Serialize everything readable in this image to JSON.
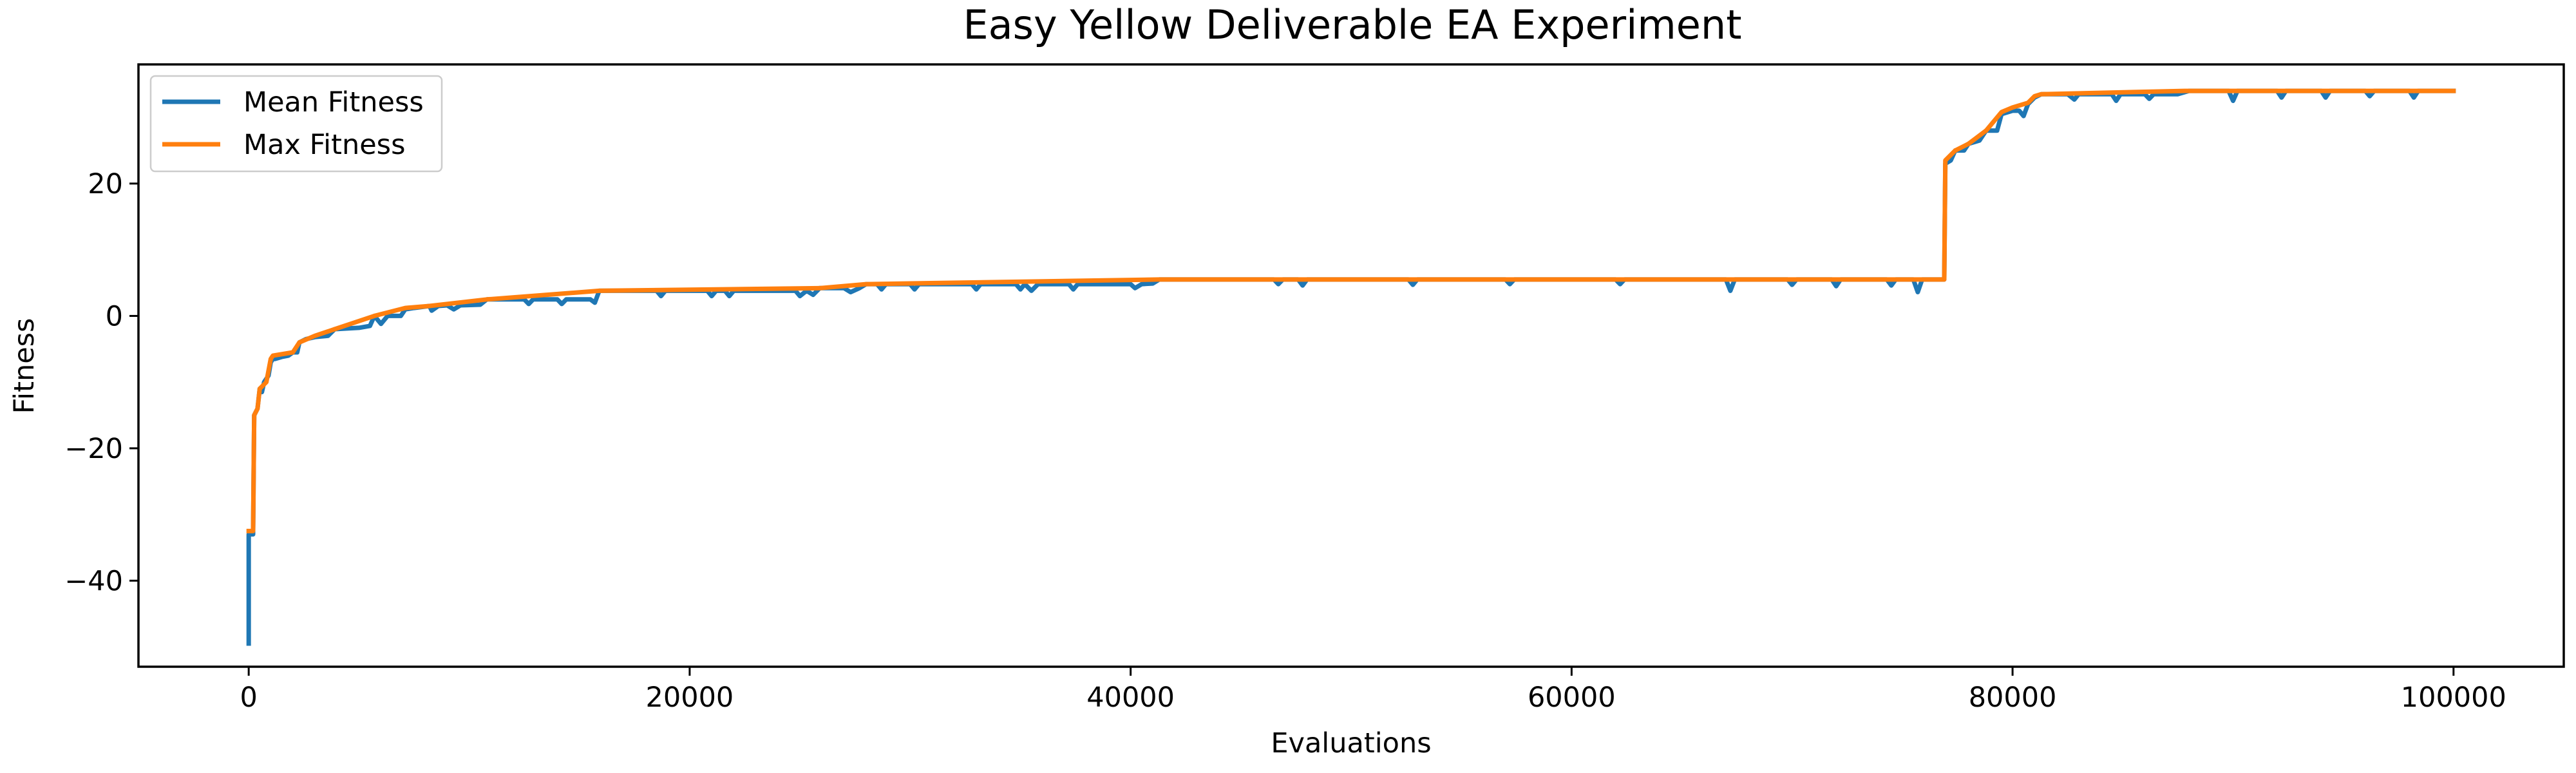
{
  "chart_data": {
    "type": "line",
    "title": "Easy Yellow Deliverable EA Experiment",
    "xlabel": "Evaluations",
    "ylabel": "Fitness",
    "xlim": [
      -5000,
      105000
    ],
    "ylim": [
      -53,
      38
    ],
    "xticks": [
      0,
      20000,
      40000,
      60000,
      80000,
      100000
    ],
    "xtick_labels": [
      "0",
      "20000",
      "40000",
      "60000",
      "80000",
      "100000"
    ],
    "yticks": [
      -40,
      -20,
      0,
      20
    ],
    "ytick_labels": [
      "−40",
      "−20",
      "0",
      "20"
    ],
    "grid": false,
    "legend_position": "top-left",
    "series": [
      {
        "name": "Mean Fitness",
        "color": "#1f77b4",
        "points": [
          [
            0,
            -49.5
          ],
          [
            0,
            -33
          ],
          [
            200,
            -33
          ],
          [
            250,
            -15
          ],
          [
            400,
            -14
          ],
          [
            500,
            -11
          ],
          [
            600,
            -11.5
          ],
          [
            700,
            -10
          ],
          [
            900,
            -9
          ],
          [
            1000,
            -7
          ],
          [
            1100,
            -6.5
          ],
          [
            1200,
            -6.5
          ],
          [
            1500,
            -6.2
          ],
          [
            1800,
            -6
          ],
          [
            2000,
            -5.5
          ],
          [
            2200,
            -5.5
          ],
          [
            2300,
            -4
          ],
          [
            2600,
            -3.5
          ],
          [
            3000,
            -3.2
          ],
          [
            3600,
            -3
          ],
          [
            3900,
            -2
          ],
          [
            5000,
            -1.8
          ],
          [
            5500,
            -1.5
          ],
          [
            5700,
            0
          ],
          [
            6000,
            -1.2
          ],
          [
            6300,
            0
          ],
          [
            6900,
            0
          ],
          [
            7100,
            1
          ],
          [
            7500,
            1.2
          ],
          [
            8200,
            1.5
          ],
          [
            8300,
            0.8
          ],
          [
            8600,
            1.5
          ],
          [
            9000,
            1.6
          ],
          [
            9300,
            1.0
          ],
          [
            9600,
            1.6
          ],
          [
            10500,
            1.7
          ],
          [
            10800,
            2.5
          ],
          [
            12500,
            2.5
          ],
          [
            12700,
            1.8
          ],
          [
            12900,
            2.5
          ],
          [
            14000,
            2.5
          ],
          [
            14200,
            1.8
          ],
          [
            14400,
            2.5
          ],
          [
            15500,
            2.5
          ],
          [
            15700,
            2
          ],
          [
            15900,
            3.8
          ],
          [
            18500,
            3.8
          ],
          [
            18700,
            3.0
          ],
          [
            18900,
            3.8
          ],
          [
            20800,
            3.8
          ],
          [
            21000,
            3.0
          ],
          [
            21200,
            3.8
          ],
          [
            21600,
            3.8
          ],
          [
            21800,
            3.0
          ],
          [
            22000,
            3.8
          ],
          [
            24800,
            3.8
          ],
          [
            25000,
            3.0
          ],
          [
            25300,
            3.8
          ],
          [
            25600,
            3.2
          ],
          [
            25900,
            4.2
          ],
          [
            27000,
            4.2
          ],
          [
            27300,
            3.6
          ],
          [
            27700,
            4.2
          ],
          [
            28000,
            4.8
          ],
          [
            28500,
            4.8
          ],
          [
            28700,
            4.0
          ],
          [
            28900,
            4.8
          ],
          [
            30000,
            4.8
          ],
          [
            30200,
            4.0
          ],
          [
            30400,
            4.8
          ],
          [
            32800,
            4.8
          ],
          [
            33000,
            4.0
          ],
          [
            33200,
            4.8
          ],
          [
            34800,
            4.8
          ],
          [
            35000,
            4.0
          ],
          [
            35200,
            4.8
          ],
          [
            35500,
            3.8
          ],
          [
            35800,
            4.8
          ],
          [
            37200,
            4.8
          ],
          [
            37400,
            4.0
          ],
          [
            37600,
            4.8
          ],
          [
            40000,
            4.8
          ],
          [
            40200,
            4.2
          ],
          [
            40500,
            4.8
          ],
          [
            41000,
            4.9
          ],
          [
            41300,
            5.5
          ],
          [
            46500,
            5.5
          ],
          [
            46700,
            4.8
          ],
          [
            46900,
            5.5
          ],
          [
            47600,
            5.5
          ],
          [
            47800,
            4.6
          ],
          [
            48000,
            5.5
          ],
          [
            52600,
            5.5
          ],
          [
            52800,
            4.7
          ],
          [
            53000,
            5.5
          ],
          [
            57000,
            5.5
          ],
          [
            57200,
            4.8
          ],
          [
            57400,
            5.5
          ],
          [
            62000,
            5.5
          ],
          [
            62200,
            4.8
          ],
          [
            62400,
            5.5
          ],
          [
            67000,
            5.5
          ],
          [
            67200,
            3.8
          ],
          [
            67400,
            5.5
          ],
          [
            69800,
            5.5
          ],
          [
            70000,
            4.7
          ],
          [
            70200,
            5.5
          ],
          [
            71800,
            5.5
          ],
          [
            72000,
            4.5
          ],
          [
            72200,
            5.5
          ],
          [
            74300,
            5.5
          ],
          [
            74500,
            4.6
          ],
          [
            74700,
            5.5
          ],
          [
            75500,
            5.5
          ],
          [
            75700,
            3.6
          ],
          [
            75900,
            5.5
          ],
          [
            76900,
            5.5
          ],
          [
            76950,
            23
          ],
          [
            77200,
            23.5
          ],
          [
            77400,
            25
          ],
          [
            77800,
            25
          ],
          [
            78000,
            26
          ],
          [
            78500,
            26.5
          ],
          [
            78800,
            28
          ],
          [
            79300,
            28
          ],
          [
            79500,
            30.5
          ],
          [
            80000,
            31
          ],
          [
            80300,
            31
          ],
          [
            80500,
            30.2
          ],
          [
            80700,
            32
          ],
          [
            81000,
            33
          ],
          [
            81300,
            33.5
          ],
          [
            82500,
            33.5
          ],
          [
            82800,
            32.7
          ],
          [
            83000,
            33.5
          ],
          [
            84500,
            33.5
          ],
          [
            84700,
            32.5
          ],
          [
            84900,
            33.5
          ],
          [
            86000,
            33.5
          ],
          [
            86200,
            32.8
          ],
          [
            86400,
            33.5
          ],
          [
            87500,
            33.5
          ],
          [
            87800,
            33.8
          ],
          [
            88000,
            34
          ],
          [
            89800,
            34
          ],
          [
            90000,
            32.5
          ],
          [
            90200,
            34
          ],
          [
            92000,
            34
          ],
          [
            92200,
            33.0
          ],
          [
            92400,
            34
          ],
          [
            94000,
            34
          ],
          [
            94200,
            33.0
          ],
          [
            94400,
            34
          ],
          [
            96000,
            34
          ],
          [
            96200,
            33.2
          ],
          [
            96400,
            34
          ],
          [
            98000,
            34
          ],
          [
            98200,
            33.0
          ],
          [
            98400,
            34
          ],
          [
            100000,
            34
          ]
        ]
      },
      {
        "name": "Max Fitness",
        "color": "#ff7f0e",
        "points": [
          [
            0,
            -32.5
          ],
          [
            200,
            -32.5
          ],
          [
            250,
            -15
          ],
          [
            400,
            -14
          ],
          [
            500,
            -11
          ],
          [
            800,
            -10
          ],
          [
            1000,
            -6.5
          ],
          [
            1100,
            -6
          ],
          [
            2000,
            -5.5
          ],
          [
            2300,
            -4
          ],
          [
            3000,
            -3
          ],
          [
            3900,
            -2
          ],
          [
            5700,
            0
          ],
          [
            7100,
            1.2
          ],
          [
            8200,
            1.5
          ],
          [
            10800,
            2.5
          ],
          [
            15900,
            3.8
          ],
          [
            25900,
            4.2
          ],
          [
            28000,
            4.8
          ],
          [
            41300,
            5.5
          ],
          [
            76900,
            5.5
          ],
          [
            76950,
            23.5
          ],
          [
            77400,
            25
          ],
          [
            78000,
            26
          ],
          [
            78800,
            28
          ],
          [
            79500,
            30.8
          ],
          [
            80000,
            31.5
          ],
          [
            80700,
            32.2
          ],
          [
            81000,
            33.2
          ],
          [
            81300,
            33.5
          ],
          [
            87800,
            34
          ],
          [
            100000,
            34
          ]
        ]
      }
    ]
  }
}
